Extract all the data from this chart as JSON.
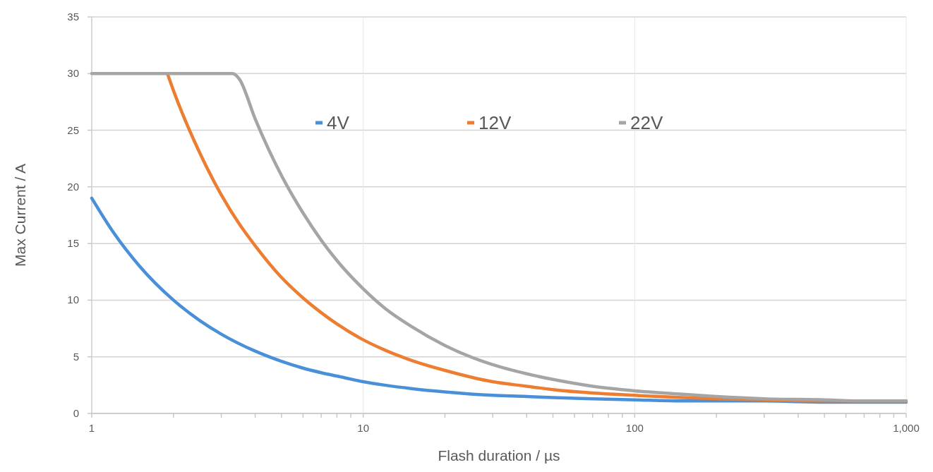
{
  "chart_data": {
    "type": "line",
    "xlabel": "Flash duration / µs",
    "ylabel": "Max Current / A",
    "log": "x",
    "xlim": [
      1,
      1000
    ],
    "ylim": [
      0,
      35
    ],
    "xticks": [
      1,
      {
        "value": 2,
        "label": null
      },
      {
        "value": 3,
        "label": null
      },
      {
        "value": 4,
        "label": null
      },
      {
        "value": 5,
        "label": null
      },
      {
        "value": 6,
        "label": null
      },
      {
        "value": 7,
        "label": null
      },
      {
        "value": 8,
        "label": null
      },
      {
        "value": 9,
        "label": null
      },
      10,
      {
        "value": 20,
        "label": null
      },
      {
        "value": 30,
        "label": null
      },
      {
        "value": 40,
        "label": null
      },
      {
        "value": 50,
        "label": null
      },
      {
        "value": 60,
        "label": null
      },
      {
        "value": 70,
        "label": null
      },
      {
        "value": 80,
        "label": null
      },
      {
        "value": 90,
        "label": null
      },
      100,
      {
        "value": 200,
        "label": null
      },
      {
        "value": 300,
        "label": null
      },
      {
        "value": 400,
        "label": null
      },
      {
        "value": 500,
        "label": null
      },
      {
        "value": 600,
        "label": null
      },
      {
        "value": 700,
        "label": null
      },
      {
        "value": 800,
        "label": null
      },
      {
        "value": 900,
        "label": null
      },
      {
        "value": 1000,
        "label": "1,000"
      }
    ],
    "yticks": [
      0,
      5,
      10,
      15,
      20,
      25,
      30,
      35
    ],
    "grid": true,
    "legend": "top",
    "series": [
      {
        "name": "4V",
        "color": "#4a90d9",
        "x": [
          1,
          1.2,
          1.5,
          2,
          2.5,
          3,
          4,
          5,
          6,
          7,
          8,
          10,
          12,
          15,
          20,
          30,
          40,
          50,
          70,
          100,
          150,
          200,
          300,
          500,
          700,
          1000
        ],
        "values": [
          19,
          16,
          13,
          10,
          8.2,
          7,
          5.5,
          4.6,
          4,
          3.6,
          3.3,
          2.8,
          2.5,
          2.2,
          1.9,
          1.6,
          1.5,
          1.4,
          1.3,
          1.2,
          1.1,
          1.1,
          1.1,
          1.0,
          1.0,
          1.0
        ]
      },
      {
        "name": "12V",
        "color": "#ed7d31",
        "x": [
          1.9,
          2,
          2.5,
          3,
          3.5,
          4,
          5,
          6,
          7,
          8,
          10,
          12,
          15,
          20,
          30,
          40,
          50,
          70,
          100,
          150,
          200,
          300,
          500,
          700,
          1000
        ],
        "values": [
          30,
          28.5,
          23,
          19.3,
          16.7,
          14.8,
          12,
          10.2,
          8.9,
          7.9,
          6.5,
          5.6,
          4.7,
          3.8,
          2.8,
          2.4,
          2.1,
          1.8,
          1.6,
          1.4,
          1.3,
          1.2,
          1.1,
          1.1,
          1.1
        ]
      },
      {
        "name": "22V",
        "color": "#a5a5a5",
        "x": [
          1,
          2,
          3,
          3.3,
          3.5,
          4,
          5,
          6,
          7,
          8,
          10,
          12,
          15,
          20,
          30,
          40,
          50,
          70,
          100,
          150,
          200,
          300,
          500,
          700,
          1000
        ],
        "values": [
          30,
          30,
          30,
          30,
          29.5,
          26,
          21,
          17.7,
          15.3,
          13.5,
          11,
          9.3,
          7.7,
          6,
          4.3,
          3.5,
          3,
          2.4,
          2,
          1.7,
          1.5,
          1.3,
          1.2,
          1.1,
          1.1
        ]
      }
    ]
  }
}
